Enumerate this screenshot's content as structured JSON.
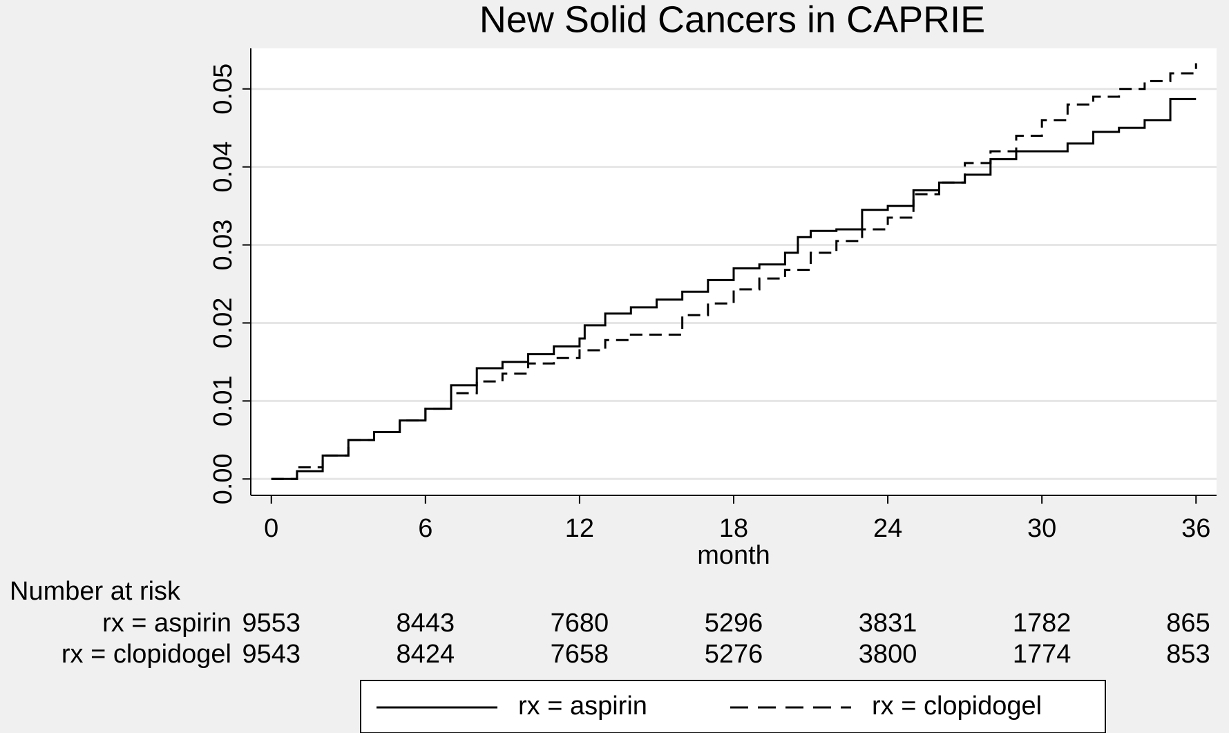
{
  "chart_data": {
    "type": "line",
    "step": true,
    "title": "New Solid Cancers in CAPRIE",
    "x_label": "month",
    "xlim": [
      -0.8,
      36.8
    ],
    "xticks": [
      0,
      6,
      12,
      18,
      24,
      30,
      36
    ],
    "ylim": [
      -0.0021,
      0.0552
    ],
    "yticks": [
      {
        "value": 0,
        "label": "0.00"
      },
      0.01,
      0.02,
      0.03,
      0.04,
      0.05
    ],
    "grid": true,
    "legend": "bottom",
    "series": [
      {
        "name": "rx = aspirin",
        "color": "#000000",
        "dash": false,
        "x": [
          0,
          1,
          2,
          3,
          4,
          5,
          6,
          7,
          8,
          9,
          10,
          11,
          12,
          12.2,
          13,
          14,
          15,
          16,
          17,
          18,
          19,
          20,
          20.5,
          21,
          22,
          23,
          24,
          25,
          26,
          27,
          28,
          29,
          30,
          31,
          32,
          33,
          34,
          35,
          36
        ],
        "values": [
          0,
          0.001,
          0.003,
          0.005,
          0.006,
          0.0075,
          0.009,
          0.012,
          0.0142,
          0.015,
          0.016,
          0.017,
          0.018,
          0.0197,
          0.0212,
          0.022,
          0.023,
          0.024,
          0.0255,
          0.027,
          0.0275,
          0.029,
          0.031,
          0.0318,
          0.032,
          0.0345,
          0.035,
          0.037,
          0.038,
          0.039,
          0.041,
          0.042,
          0.042,
          0.043,
          0.0445,
          0.045,
          0.046,
          0.0487,
          0.0487
        ]
      },
      {
        "name": "rx = clopidogel",
        "color": "#000000",
        "dash": true,
        "x": [
          0,
          1,
          2,
          3,
          4,
          5,
          6,
          7,
          8,
          9,
          10,
          11,
          12,
          13,
          14,
          15,
          16,
          17,
          18,
          19,
          20,
          21,
          22,
          23,
          24,
          25,
          26,
          27,
          28,
          29,
          30,
          31,
          32,
          33,
          34,
          35,
          36
        ],
        "values": [
          0,
          0.0015,
          0.003,
          0.005,
          0.006,
          0.0075,
          0.009,
          0.011,
          0.0125,
          0.0135,
          0.0148,
          0.0155,
          0.0165,
          0.0178,
          0.0185,
          0.0185,
          0.021,
          0.0225,
          0.0243,
          0.0257,
          0.0268,
          0.029,
          0.0305,
          0.032,
          0.0335,
          0.0365,
          0.038,
          0.0405,
          0.042,
          0.044,
          0.046,
          0.048,
          0.049,
          0.05,
          0.051,
          0.052,
          0.0533
        ]
      }
    ],
    "risk_table": {
      "title": "Number at risk",
      "rows": [
        {
          "label": "rx = aspirin",
          "values": [
            9553,
            8443,
            7680,
            5296,
            3831,
            1782,
            865
          ]
        },
        {
          "label": "rx = clopidogel",
          "values": [
            9543,
            8424,
            7658,
            5276,
            3800,
            1774,
            853
          ]
        }
      ]
    }
  }
}
